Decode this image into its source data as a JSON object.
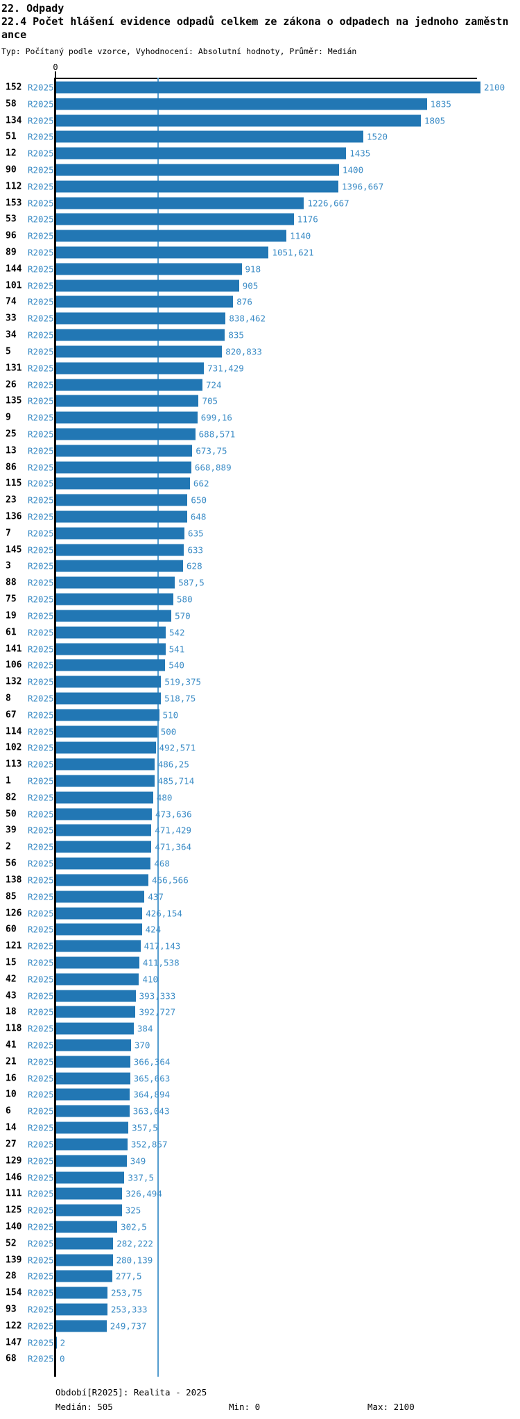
{
  "page": {
    "section_title": "22. Odpady",
    "chart_title": "22.4 Počet hlášení evidence odpadů celkem ze zákona o odpadech na jednoho zaměstnance",
    "subtitle": "Typ: Počítaný podle vzorce, Vyhodnocení: Absolutní hodnoty, Průměr: Medián"
  },
  "colors": {
    "bar": "#2277b4",
    "blue_text": "#3b8cc6",
    "median_line": "#549ccf",
    "axis": "#000000"
  },
  "chart_data": {
    "type": "bar",
    "orientation": "horizontal",
    "title": "22.4 Počet hlášení evidence odpadů celkem ze zákona o odpadech na jednoho zaměstnance",
    "series_label": "R2025",
    "axis_tick_top": "0",
    "xlim": [
      0,
      2100
    ],
    "median_value": 505,
    "legend_position": "none",
    "rows": [
      {
        "id": "152",
        "label": "R2025",
        "value": 2100,
        "display": "2100"
      },
      {
        "id": "58",
        "label": "R2025",
        "value": 1835,
        "display": "1835"
      },
      {
        "id": "134",
        "label": "R2025",
        "value": 1805,
        "display": "1805"
      },
      {
        "id": "51",
        "label": "R2025",
        "value": 1520,
        "display": "1520"
      },
      {
        "id": "12",
        "label": "R2025",
        "value": 1435,
        "display": "1435"
      },
      {
        "id": "90",
        "label": "R2025",
        "value": 1400,
        "display": "1400"
      },
      {
        "id": "112",
        "label": "R2025",
        "value": 1396.667,
        "display": "1396,667"
      },
      {
        "id": "153",
        "label": "R2025",
        "value": 1226.667,
        "display": "1226,667"
      },
      {
        "id": "53",
        "label": "R2025",
        "value": 1176,
        "display": "1176"
      },
      {
        "id": "96",
        "label": "R2025",
        "value": 1140,
        "display": "1140"
      },
      {
        "id": "89",
        "label": "R2025",
        "value": 1051.621,
        "display": "1051,621"
      },
      {
        "id": "144",
        "label": "R2025",
        "value": 918,
        "display": "918"
      },
      {
        "id": "101",
        "label": "R2025",
        "value": 905,
        "display": "905"
      },
      {
        "id": "74",
        "label": "R2025",
        "value": 876,
        "display": "876"
      },
      {
        "id": "33",
        "label": "R2025",
        "value": 838.462,
        "display": "838,462"
      },
      {
        "id": "34",
        "label": "R2025",
        "value": 835,
        "display": "835"
      },
      {
        "id": "5",
        "label": "R2025",
        "value": 820.833,
        "display": "820,833"
      },
      {
        "id": "131",
        "label": "R2025",
        "value": 731.429,
        "display": "731,429"
      },
      {
        "id": "26",
        "label": "R2025",
        "value": 724,
        "display": "724"
      },
      {
        "id": "135",
        "label": "R2025",
        "value": 705,
        "display": "705"
      },
      {
        "id": "9",
        "label": "R2025",
        "value": 699.16,
        "display": "699,16"
      },
      {
        "id": "25",
        "label": "R2025",
        "value": 688.571,
        "display": "688,571"
      },
      {
        "id": "13",
        "label": "R2025",
        "value": 673.75,
        "display": "673,75"
      },
      {
        "id": "86",
        "label": "R2025",
        "value": 668.889,
        "display": "668,889"
      },
      {
        "id": "115",
        "label": "R2025",
        "value": 662,
        "display": "662"
      },
      {
        "id": "23",
        "label": "R2025",
        "value": 650,
        "display": "650"
      },
      {
        "id": "136",
        "label": "R2025",
        "value": 648,
        "display": "648"
      },
      {
        "id": "7",
        "label": "R2025",
        "value": 635,
        "display": "635"
      },
      {
        "id": "145",
        "label": "R2025",
        "value": 633,
        "display": "633"
      },
      {
        "id": "3",
        "label": "R2025",
        "value": 628,
        "display": "628"
      },
      {
        "id": "88",
        "label": "R2025",
        "value": 587.5,
        "display": "587,5"
      },
      {
        "id": "75",
        "label": "R2025",
        "value": 580,
        "display": "580"
      },
      {
        "id": "19",
        "label": "R2025",
        "value": 570,
        "display": "570"
      },
      {
        "id": "61",
        "label": "R2025",
        "value": 542,
        "display": "542"
      },
      {
        "id": "141",
        "label": "R2025",
        "value": 541,
        "display": "541"
      },
      {
        "id": "106",
        "label": "R2025",
        "value": 540,
        "display": "540"
      },
      {
        "id": "132",
        "label": "R2025",
        "value": 519.375,
        "display": "519,375"
      },
      {
        "id": "8",
        "label": "R2025",
        "value": 518.75,
        "display": "518,75"
      },
      {
        "id": "67",
        "label": "R2025",
        "value": 510,
        "display": "510"
      },
      {
        "id": "114",
        "label": "R2025",
        "value": 500,
        "display": "500"
      },
      {
        "id": "102",
        "label": "R2025",
        "value": 492.571,
        "display": "492,571"
      },
      {
        "id": "113",
        "label": "R2025",
        "value": 486.25,
        "display": "486,25"
      },
      {
        "id": "1",
        "label": "R2025",
        "value": 485.714,
        "display": "485,714"
      },
      {
        "id": "82",
        "label": "R2025",
        "value": 480,
        "display": "480"
      },
      {
        "id": "50",
        "label": "R2025",
        "value": 473.636,
        "display": "473,636"
      },
      {
        "id": "39",
        "label": "R2025",
        "value": 471.429,
        "display": "471,429"
      },
      {
        "id": "2",
        "label": "R2025",
        "value": 471.364,
        "display": "471,364"
      },
      {
        "id": "56",
        "label": "R2025",
        "value": 468,
        "display": "468"
      },
      {
        "id": "138",
        "label": "R2025",
        "value": 456.566,
        "display": "456,566"
      },
      {
        "id": "85",
        "label": "R2025",
        "value": 437,
        "display": "437"
      },
      {
        "id": "126",
        "label": "R2025",
        "value": 426.154,
        "display": "426,154"
      },
      {
        "id": "60",
        "label": "R2025",
        "value": 424,
        "display": "424"
      },
      {
        "id": "121",
        "label": "R2025",
        "value": 417.143,
        "display": "417,143"
      },
      {
        "id": "15",
        "label": "R2025",
        "value": 411.538,
        "display": "411,538"
      },
      {
        "id": "42",
        "label": "R2025",
        "value": 410,
        "display": "410"
      },
      {
        "id": "43",
        "label": "R2025",
        "value": 393.333,
        "display": "393,333"
      },
      {
        "id": "18",
        "label": "R2025",
        "value": 392.727,
        "display": "392,727"
      },
      {
        "id": "118",
        "label": "R2025",
        "value": 384,
        "display": "384"
      },
      {
        "id": "41",
        "label": "R2025",
        "value": 370,
        "display": "370"
      },
      {
        "id": "21",
        "label": "R2025",
        "value": 366.364,
        "display": "366,364"
      },
      {
        "id": "16",
        "label": "R2025",
        "value": 365.663,
        "display": "365,663"
      },
      {
        "id": "10",
        "label": "R2025",
        "value": 364.894,
        "display": "364,894"
      },
      {
        "id": "6",
        "label": "R2025",
        "value": 363.043,
        "display": "363,043"
      },
      {
        "id": "14",
        "label": "R2025",
        "value": 357.5,
        "display": "357,5"
      },
      {
        "id": "27",
        "label": "R2025",
        "value": 352.857,
        "display": "352,857"
      },
      {
        "id": "129",
        "label": "R2025",
        "value": 349,
        "display": "349"
      },
      {
        "id": "146",
        "label": "R2025",
        "value": 337.5,
        "display": "337,5"
      },
      {
        "id": "111",
        "label": "R2025",
        "value": 326.494,
        "display": "326,494"
      },
      {
        "id": "125",
        "label": "R2025",
        "value": 325,
        "display": "325"
      },
      {
        "id": "140",
        "label": "R2025",
        "value": 302.5,
        "display": "302,5"
      },
      {
        "id": "52",
        "label": "R2025",
        "value": 282.222,
        "display": "282,222"
      },
      {
        "id": "139",
        "label": "R2025",
        "value": 280.139,
        "display": "280,139"
      },
      {
        "id": "28",
        "label": "R2025",
        "value": 277.5,
        "display": "277,5"
      },
      {
        "id": "154",
        "label": "R2025",
        "value": 253.75,
        "display": "253,75"
      },
      {
        "id": "93",
        "label": "R2025",
        "value": 253.333,
        "display": "253,333"
      },
      {
        "id": "122",
        "label": "R2025",
        "value": 249.737,
        "display": "249,737"
      },
      {
        "id": "147",
        "label": "R2025",
        "value": 2,
        "display": "2"
      },
      {
        "id": "68",
        "label": "R2025",
        "value": 0,
        "display": "0"
      }
    ]
  },
  "footer": {
    "period": "Období[R2025]: Realita - 2025",
    "median": "Medián: 505",
    "min": "Min: 0",
    "max": "Max: 2100"
  }
}
